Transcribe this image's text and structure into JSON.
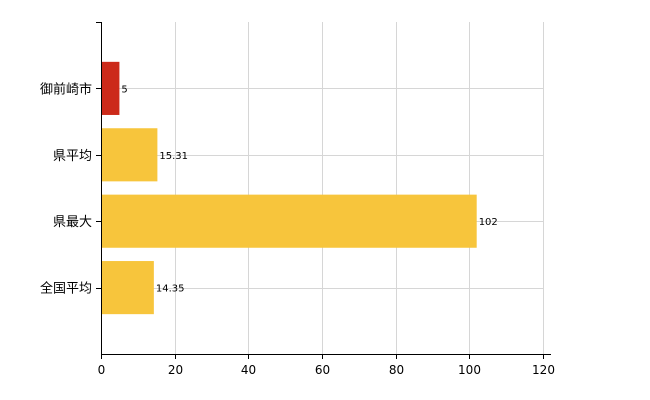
{
  "chart_data": {
    "type": "bar",
    "orientation": "horizontal",
    "categories": [
      "御前崎市",
      "県平均",
      "県最大",
      "全国平均"
    ],
    "values": [
      5,
      15.31,
      102,
      14.35
    ],
    "value_labels": [
      "5",
      "15.31",
      "102",
      "14.35"
    ],
    "bar_colors": [
      "#cc2a1a",
      "#f7c53c",
      "#f7c53c",
      "#f7c53c"
    ],
    "xlim": [
      0,
      120
    ],
    "xticks": [
      0,
      20,
      40,
      60,
      80,
      100,
      120
    ],
    "grid": true,
    "legend": "none",
    "title": "",
    "xlabel": "",
    "ylabel": ""
  }
}
